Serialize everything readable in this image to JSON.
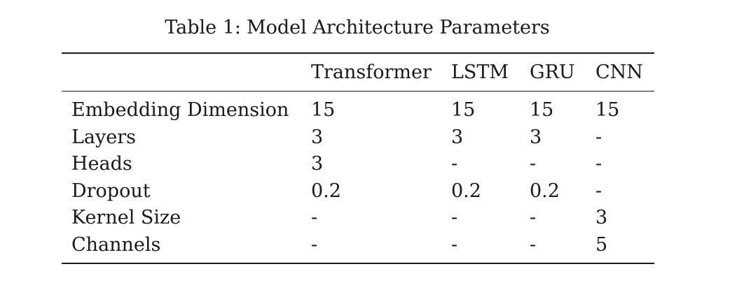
{
  "caption": {
    "number": "Table 1:",
    "title": "Model Architecture Parameters"
  },
  "table": {
    "columns": [
      "",
      "Transformer",
      "LSTM",
      "GRU",
      "CNN"
    ],
    "rows": [
      {
        "label": "Embedding Dimension",
        "cells": [
          "15",
          "15",
          "15",
          "15"
        ]
      },
      {
        "label": "Layers",
        "cells": [
          "3",
          "3",
          "3",
          "-"
        ]
      },
      {
        "label": "Heads",
        "cells": [
          "3",
          "-",
          "-",
          "-"
        ]
      },
      {
        "label": "Dropout",
        "cells": [
          "0.2",
          "0.2",
          "0.2",
          "-"
        ]
      },
      {
        "label": "Kernel Size",
        "cells": [
          "-",
          "-",
          "-",
          "3"
        ]
      },
      {
        "label": "Channels",
        "cells": [
          "-",
          "-",
          "-",
          "5"
        ]
      }
    ]
  }
}
